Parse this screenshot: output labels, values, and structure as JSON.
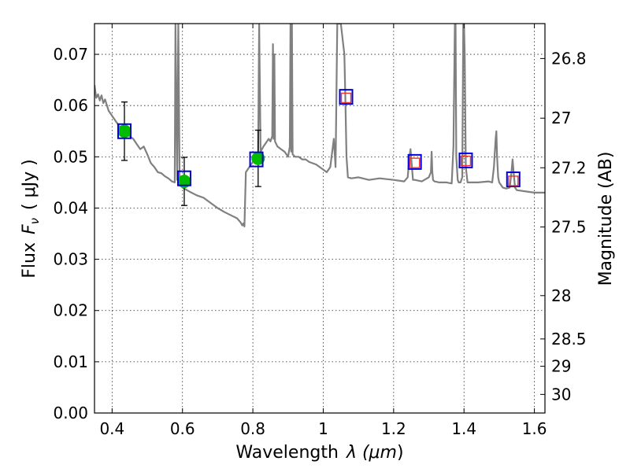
{
  "chart_data": {
    "type": "line",
    "xlabel": "Wavelength",
    "xlabel_var": "λ (",
    "xlabel_unit": "μm",
    "xlabel_close": ")",
    "ylabel": "Flux",
    "ylabel_var": "F",
    "ylabel_sub": "ν",
    "ylabel_unit": "( μJy )",
    "y2label": "Magnitude (AB)",
    "xlim": [
      0.35,
      1.63
    ],
    "ylim": [
      0.0,
      0.076
    ],
    "grid": true,
    "xticks": [
      0.4,
      0.6,
      0.8,
      1.0,
      1.2,
      1.4,
      1.6
    ],
    "xtick_labels": [
      "0.4",
      "0.6",
      "0.8",
      "1",
      "1.2",
      "1.4",
      "1.6"
    ],
    "yticks": [
      0.0,
      0.01,
      0.02,
      0.03,
      0.04,
      0.05,
      0.06,
      0.07
    ],
    "ytick_labels": [
      "0.00",
      "0.01",
      "0.02",
      "0.03",
      "0.04",
      "0.05",
      "0.06",
      "0.07"
    ],
    "mag_ticks": [
      26.8,
      27.0,
      27.2,
      27.5,
      28.0,
      28.5,
      29.0,
      30.0
    ],
    "mag_tick_labels": [
      "26.8",
      "27",
      "27.2",
      "27.5",
      "28",
      "28.5",
      "29",
      "30"
    ],
    "mag_zeropoint": 23.9,
    "colors": {
      "spectrum": "#808080",
      "observed": "#00bb00",
      "model_box": "#0000dd",
      "upper_limit_box": "#ee3333",
      "errorbar": "#000000"
    },
    "series": [
      {
        "name": "model spectrum",
        "kind": "line",
        "x": [
          0.35,
          0.355,
          0.36,
          0.365,
          0.37,
          0.375,
          0.38,
          0.39,
          0.4,
          0.41,
          0.42,
          0.43,
          0.44,
          0.45,
          0.46,
          0.47,
          0.48,
          0.49,
          0.5,
          0.51,
          0.52,
          0.53,
          0.54,
          0.55,
          0.56,
          0.57,
          0.578,
          0.58,
          0.585,
          0.588,
          0.592,
          0.6,
          0.62,
          0.64,
          0.66,
          0.68,
          0.7,
          0.72,
          0.74,
          0.755,
          0.765,
          0.77,
          0.773,
          0.776,
          0.78,
          0.79,
          0.8,
          0.805,
          0.81,
          0.815,
          0.818,
          0.822,
          0.826,
          0.83,
          0.835,
          0.84,
          0.845,
          0.85,
          0.855,
          0.857,
          0.859,
          0.861,
          0.863,
          0.87,
          0.88,
          0.89,
          0.9,
          0.905,
          0.907,
          0.909,
          0.911,
          0.913,
          0.92,
          0.93,
          0.94,
          0.95,
          0.96,
          0.98,
          1.0,
          1.01,
          1.02,
          1.03,
          1.035,
          1.04,
          1.05,
          1.06,
          1.063,
          1.066,
          1.07,
          1.08,
          1.1,
          1.13,
          1.16,
          1.2,
          1.23,
          1.24,
          1.245,
          1.248,
          1.251,
          1.255,
          1.26,
          1.28,
          1.3,
          1.306,
          1.308,
          1.31,
          1.312,
          1.316,
          1.33,
          1.35,
          1.365,
          1.37,
          1.374,
          1.376,
          1.378,
          1.382,
          1.385,
          1.39,
          1.395,
          1.398,
          1.4,
          1.402,
          1.405,
          1.41,
          1.44,
          1.47,
          1.48,
          1.485,
          1.49,
          1.492,
          1.494,
          1.497,
          1.5,
          1.51,
          1.52,
          1.53,
          1.535,
          1.538,
          1.541,
          1.545,
          1.55,
          1.58,
          1.6,
          1.63
        ],
        "y": [
          0.064,
          0.0615,
          0.0622,
          0.061,
          0.062,
          0.0605,
          0.0612,
          0.059,
          0.058,
          0.057,
          0.056,
          0.055,
          0.0547,
          0.054,
          0.0535,
          0.0525,
          0.0515,
          0.052,
          0.0505,
          0.0488,
          0.048,
          0.047,
          0.0468,
          0.0462,
          0.0458,
          0.0452,
          0.045,
          0.076,
          0.0455,
          0.076,
          0.0455,
          0.044,
          0.0432,
          0.0425,
          0.042,
          0.041,
          0.04,
          0.0392,
          0.0385,
          0.038,
          0.0372,
          0.0366,
          0.037,
          0.0364,
          0.047,
          0.048,
          0.049,
          0.0496,
          0.05,
          0.0504,
          0.076,
          0.051,
          0.0515,
          0.052,
          0.0525,
          0.053,
          0.0535,
          0.053,
          0.054,
          0.072,
          0.0535,
          0.07,
          0.053,
          0.052,
          0.0515,
          0.051,
          0.05,
          0.052,
          0.076,
          0.051,
          0.076,
          0.0505,
          0.05,
          0.05,
          0.0495,
          0.0495,
          0.049,
          0.0485,
          0.0475,
          0.047,
          0.048,
          0.0535,
          0.048,
          0.076,
          0.076,
          0.07,
          0.061,
          0.05,
          0.046,
          0.0458,
          0.046,
          0.0455,
          0.0458,
          0.0455,
          0.0452,
          0.046,
          0.05,
          0.0515,
          0.049,
          0.0455,
          0.0455,
          0.0452,
          0.046,
          0.047,
          0.051,
          0.047,
          0.0455,
          0.0452,
          0.045,
          0.045,
          0.0448,
          0.052,
          0.076,
          0.076,
          0.05,
          0.0455,
          0.045,
          0.045,
          0.046,
          0.076,
          0.076,
          0.07,
          0.048,
          0.045,
          0.045,
          0.0452,
          0.045,
          0.048,
          0.0535,
          0.055,
          0.05,
          0.046,
          0.045,
          0.044,
          0.0438,
          0.044,
          0.047,
          0.0495,
          0.047,
          0.044,
          0.0435,
          0.0432,
          0.043,
          0.043
        ]
      },
      {
        "name": "observed photometry",
        "kind": "scatter-errorbar",
        "x": [
          0.435,
          0.605,
          0.815
        ],
        "y": [
          0.055,
          0.0452,
          0.0497
        ],
        "yerr": [
          0.0057,
          0.0047,
          0.0055
        ]
      },
      {
        "name": "model photometry",
        "kind": "open-square",
        "x": [
          0.435,
          0.605,
          0.81,
          1.065,
          1.26,
          1.405,
          1.54
        ],
        "y": [
          0.055,
          0.0458,
          0.0495,
          0.0617,
          0.049,
          0.0493,
          0.0456
        ]
      },
      {
        "name": "upper limits",
        "kind": "open-square-small",
        "x": [
          1.065,
          1.26,
          1.405,
          1.54
        ],
        "y": [
          0.0615,
          0.0488,
          0.0492,
          0.0453
        ]
      }
    ]
  }
}
